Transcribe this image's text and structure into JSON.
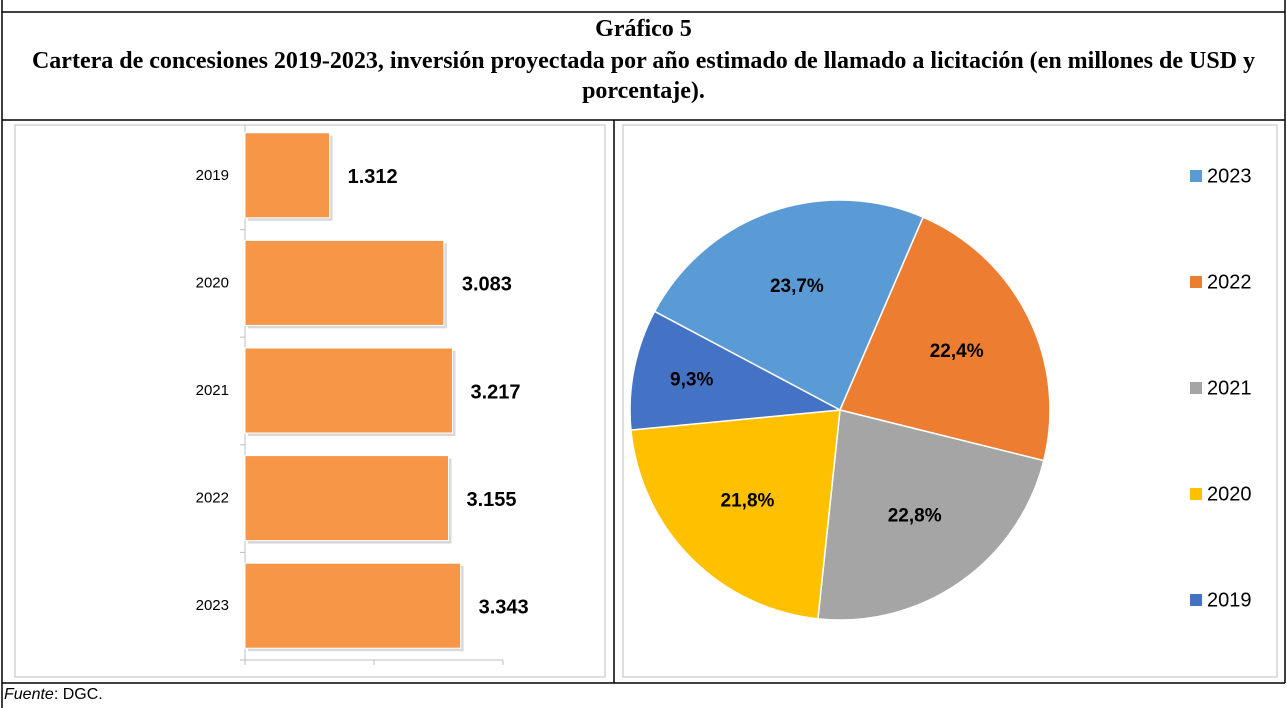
{
  "header": {
    "title": "Gráfico 5",
    "subtitle": "Cartera de concesiones 2019-2023, inversión proyectada por año estimado de llamado a licitación (en millones de USD y porcentaje)."
  },
  "chart_data": [
    {
      "type": "bar",
      "orientation": "horizontal",
      "categories": [
        "2019",
        "2020",
        "2021",
        "2022",
        "2023"
      ],
      "values": [
        1312,
        3083,
        3217,
        3155,
        3343
      ],
      "value_labels": [
        "1.312",
        "3.083",
        "3.217",
        "3.155",
        "3.343"
      ],
      "color": "#f79646",
      "xlim": [
        0,
        4000
      ],
      "xticks": [
        0,
        2000,
        4000
      ]
    },
    {
      "type": "pie",
      "categories": [
        "2023",
        "2022",
        "2021",
        "2020",
        "2019"
      ],
      "values": [
        23.7,
        22.4,
        22.8,
        21.8,
        9.3
      ],
      "value_labels": [
        "23,7%",
        "22,4%",
        "22,8%",
        "21,8%",
        "9,3%"
      ],
      "colors": [
        "#5b9bd5",
        "#ed7d31",
        "#a5a5a5",
        "#ffc000",
        "#4472c4"
      ],
      "legend": "right"
    }
  ],
  "footer": {
    "source_label": "Fuente",
    "source": ": DGC."
  }
}
